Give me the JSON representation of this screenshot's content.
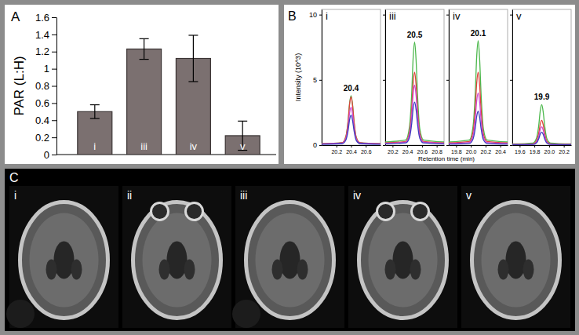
{
  "chart_data": [
    {
      "panel": "A",
      "type": "bar",
      "categories": [
        "i",
        "iii",
        "iv",
        "v"
      ],
      "values": [
        0.5,
        1.23,
        1.12,
        0.22
      ],
      "errors": [
        0.08,
        0.12,
        0.27,
        0.17
      ],
      "color": "#7b7070",
      "y_label": "PAR (L:H)",
      "ylim": [
        0,
        1.6
      ],
      "yticks": [
        0,
        0.2,
        0.4,
        0.6,
        0.8,
        1,
        1.2,
        1.4,
        1.6
      ]
    },
    {
      "panel": "B",
      "type": "line",
      "title": "i",
      "y_label": "Intensity (10^3)",
      "x_label": "Retention time (min)",
      "x": [
        20.0,
        20.28,
        20.33,
        20.36,
        20.38,
        20.4,
        20.42,
        20.44,
        20.47,
        20.52,
        20.8
      ],
      "series": [
        {
          "color": "#4cb84c",
          "values": [
            0.11,
            0.19,
            0.68,
            1.9,
            3.23,
            3.8,
            3.12,
            1.82,
            0.61,
            0.19,
            0.11
          ]
        },
        {
          "color": "#e0403a",
          "values": [
            0.11,
            0.19,
            0.67,
            1.85,
            3.15,
            3.7,
            3.03,
            1.78,
            0.59,
            0.19,
            0.11
          ]
        },
        {
          "color": "#d04ad0",
          "values": [
            0.09,
            0.15,
            0.52,
            1.45,
            2.47,
            2.9,
            2.38,
            1.39,
            0.46,
            0.15,
            0.09
          ]
        },
        {
          "color": "#3c3cc0",
          "values": [
            0.07,
            0.12,
            0.41,
            1.15,
            1.96,
            2.3,
            1.89,
            1.1,
            0.37,
            0.12,
            0.07
          ]
        }
      ],
      "xlim": [
        20.0,
        20.8
      ],
      "xticks": [
        20.2,
        20.4,
        20.6
      ],
      "ylim": [
        0,
        10.4
      ],
      "yticks": [
        0,
        5,
        10
      ],
      "annotations": [
        {
          "text": "20.4",
          "x": 20.4
        }
      ]
    },
    {
      "type": "line",
      "title": "iii",
      "tick_labels": "x",
      "x": [
        20.1,
        20.38,
        20.43,
        20.46,
        20.48,
        20.5,
        20.52,
        20.54,
        20.57,
        20.62,
        20.9
      ],
      "series": [
        {
          "color": "#4cb84c",
          "values": [
            0.24,
            0.4,
            1.42,
            3.95,
            6.72,
            7.9,
            6.48,
            3.79,
            1.26,
            0.4,
            0.24
          ]
        },
        {
          "color": "#e0403a",
          "values": [
            0.17,
            0.28,
            1.01,
            2.8,
            4.76,
            5.6,
            4.59,
            2.69,
            0.9,
            0.28,
            0.17
          ]
        },
        {
          "color": "#d04ad0",
          "values": [
            0.14,
            0.23,
            0.83,
            2.3,
            3.91,
            4.6,
            3.77,
            2.21,
            0.74,
            0.23,
            0.14
          ]
        },
        {
          "color": "#3c3cc0",
          "values": [
            0.1,
            0.17,
            0.59,
            1.65,
            2.81,
            3.3,
            2.71,
            1.58,
            0.53,
            0.17,
            0.1
          ]
        }
      ],
      "xlim": [
        20.1,
        20.9
      ],
      "xticks": [
        20.2,
        20.4,
        20.6,
        20.8
      ],
      "ylim": [
        0,
        10.4
      ],
      "yticks": [
        0,
        5,
        10
      ],
      "annotations": [
        {
          "text": "20.5",
          "x": 20.5
        }
      ]
    },
    {
      "type": "line",
      "title": "iv",
      "tick_labels": "x",
      "x": [
        19.7,
        19.98,
        20.03,
        20.06,
        20.08,
        20.1,
        20.12,
        20.14,
        20.17,
        20.22,
        20.5
      ],
      "series": [
        {
          "color": "#4cb84c",
          "values": [
            0.24,
            0.4,
            1.44,
            4.0,
            6.8,
            8.0,
            6.56,
            3.84,
            1.28,
            0.4,
            0.24
          ]
        },
        {
          "color": "#e0403a",
          "values": [
            0.17,
            0.28,
            1.01,
            2.8,
            4.76,
            5.6,
            4.59,
            2.69,
            0.9,
            0.28,
            0.17
          ]
        },
        {
          "color": "#d04ad0",
          "values": [
            0.12,
            0.2,
            0.72,
            2.0,
            3.4,
            4.0,
            3.28,
            1.92,
            0.64,
            0.2,
            0.12
          ]
        },
        {
          "color": "#3c3cc0",
          "values": [
            0.08,
            0.13,
            0.47,
            1.3,
            2.21,
            2.6,
            2.13,
            1.25,
            0.42,
            0.13,
            0.08
          ]
        }
      ],
      "xlim": [
        19.7,
        20.5
      ],
      "xticks": [
        19.8,
        {
          "value": 20,
          "label": "20.0"
        },
        20.2,
        20.4
      ],
      "ylim": [
        0,
        10.4
      ],
      "yticks": [
        0,
        5,
        10
      ],
      "annotations": [
        {
          "text": "20.1",
          "x": 20.1
        }
      ]
    },
    {
      "type": "line",
      "title": "v",
      "tick_labels": "x",
      "x": [
        19.5,
        19.78,
        19.83,
        19.86,
        19.88,
        19.9,
        19.92,
        19.94,
        19.97,
        20.02,
        20.3
      ],
      "series": [
        {
          "color": "#4cb84c",
          "values": [
            0.09,
            0.16,
            0.56,
            1.55,
            2.64,
            3.1,
            2.54,
            1.49,
            0.5,
            0.16,
            0.09
          ]
        },
        {
          "color": "#e0403a",
          "values": [
            0.06,
            0.1,
            0.34,
            0.95,
            1.62,
            1.9,
            1.56,
            0.91,
            0.3,
            0.1,
            0.06
          ]
        },
        {
          "color": "#d04ad0",
          "values": [
            0.04,
            0.07,
            0.25,
            0.7,
            1.19,
            1.4,
            1.15,
            0.67,
            0.22,
            0.07,
            0.04
          ]
        },
        {
          "color": "#3c3cc0",
          "values": [
            0.03,
            0.05,
            0.18,
            0.5,
            0.85,
            1.0,
            0.82,
            0.48,
            0.16,
            0.05,
            0.03
          ]
        }
      ],
      "xlim": [
        19.5,
        20.3
      ],
      "xticks": [
        19.6,
        19.8,
        {
          "value": 20,
          "label": "20.0"
        },
        20.2
      ],
      "ylim": [
        0,
        10.4
      ],
      "yticks": [
        0,
        5,
        10
      ],
      "annotations": [
        {
          "text": "19.9",
          "x": 19.9
        }
      ]
    }
  ],
  "images": {
    "panel": "C",
    "labels": [
      "i",
      "ii",
      "iii",
      "iv",
      "v"
    ]
  }
}
